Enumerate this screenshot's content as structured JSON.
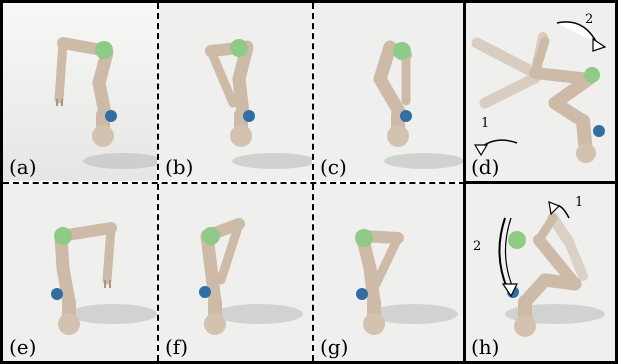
{
  "panels": [
    {
      "id": "a",
      "label": "(a)"
    },
    {
      "id": "b",
      "label": "(b)"
    },
    {
      "id": "c",
      "label": "(c)"
    },
    {
      "id": "d",
      "label": "(d)",
      "arrow_labels": [
        "2",
        "1"
      ]
    },
    {
      "id": "e",
      "label": "(e)"
    },
    {
      "id": "f",
      "label": "(f)"
    },
    {
      "id": "g",
      "label": "(g)"
    },
    {
      "id": "h",
      "label": "(h)",
      "arrow_labels": [
        "1",
        "2"
      ]
    }
  ],
  "colors": {
    "link": "#cdbba7",
    "link_dark": "#a89682",
    "green_joint": "#8fca86",
    "blue_joint": "#2f6fa6",
    "shadow": "#b9b9b9",
    "border": "#000000"
  }
}
